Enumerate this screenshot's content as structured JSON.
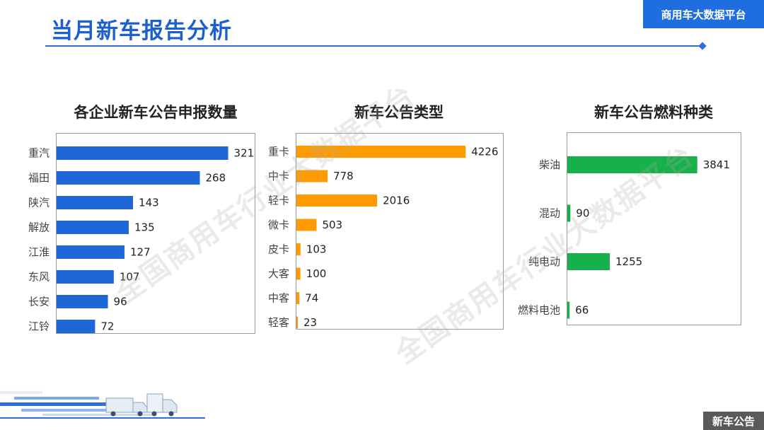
{
  "page": {
    "title": "当月新车报告分析",
    "platform_badge": "商用车大数据平台",
    "section_badge": "新车公告",
    "watermark": "全国商用车行业大数据平台",
    "accent": "#1e5fce"
  },
  "chart_data": [
    {
      "type": "bar",
      "orientation": "horizontal",
      "title": "各企业新车公告申报数量",
      "categories": [
        "重汽",
        "福田",
        "陕汽",
        "解放",
        "江淮",
        "东风",
        "长安",
        "江铃"
      ],
      "values": [
        321,
        268,
        143,
        135,
        127,
        107,
        96,
        72
      ],
      "color": "#1f66d6",
      "xlim": [
        0,
        360
      ],
      "grid": false
    },
    {
      "type": "bar",
      "orientation": "horizontal",
      "title": "新车公告类型",
      "categories": [
        "重卡",
        "中卡",
        "轻卡",
        "微卡",
        "皮卡",
        "大客",
        "中客",
        "轻客"
      ],
      "values": [
        4226,
        778,
        2016,
        503,
        103,
        100,
        74,
        23
      ],
      "color": "#ff9a00",
      "xlim": [
        0,
        5000
      ],
      "grid": false
    },
    {
      "type": "bar",
      "orientation": "horizontal",
      "title": "新车公告燃料种类",
      "categories": [
        "柴油",
        "混动",
        "纯电动",
        "燃料电池"
      ],
      "values": [
        3841,
        90,
        1255,
        66
      ],
      "color": "#18b04a",
      "xlim": [
        0,
        4600
      ],
      "grid": false
    }
  ]
}
